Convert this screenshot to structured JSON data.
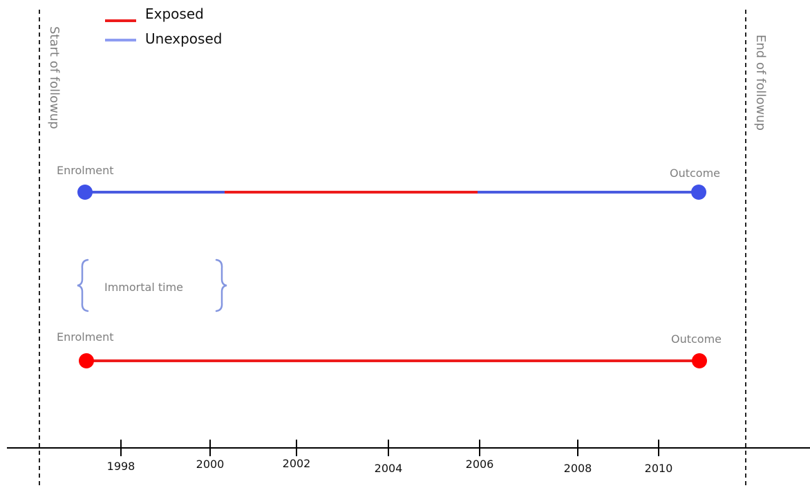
{
  "legend": {
    "items": [
      {
        "label": "Exposed",
        "color": "#ee1c1c"
      },
      {
        "label": "Unexposed",
        "color": "#8e9cf2"
      }
    ]
  },
  "boundaries": {
    "start_label": "Start of followup",
    "end_label": "End of followup"
  },
  "timelines": {
    "top": {
      "start_label": "Enrolment",
      "end_label": "Outcome",
      "endpoint_color": "#3f51e8",
      "segments": [
        {
          "status": "unexposed",
          "color": "#4a5be0"
        },
        {
          "status": "exposed",
          "color": "#ee1c1c"
        },
        {
          "status": "unexposed",
          "color": "#4a5be0"
        }
      ]
    },
    "bottom": {
      "start_label": "Enrolment",
      "end_label": "Outcome",
      "endpoint_color": "#ff0000",
      "segments": [
        {
          "status": "exposed",
          "color": "#ee1c1c"
        }
      ]
    }
  },
  "annotation": {
    "label": "Immortal time",
    "brace_color": "#8496e0"
  },
  "axis": {
    "ticks": [
      "1998",
      "2000",
      "2002",
      "2004",
      "2006",
      "2008",
      "2010"
    ]
  }
}
